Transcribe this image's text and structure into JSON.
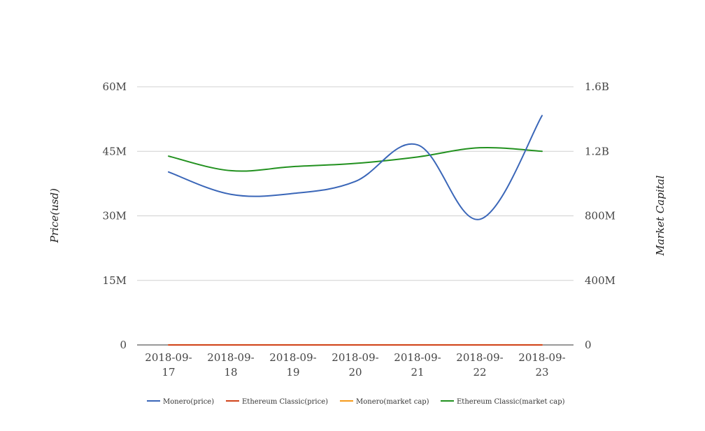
{
  "chart_data": {
    "type": "line",
    "title": "",
    "categories": [
      "2018-09-17",
      "2018-09-18",
      "2018-09-19",
      "2018-09-20",
      "2018-09-21",
      "2018-09-22",
      "2018-09-23"
    ],
    "category_labels": [
      [
        "2018-09-",
        "17"
      ],
      [
        "2018-09-",
        "18"
      ],
      [
        "2018-09-",
        "19"
      ],
      [
        "2018-09-",
        "20"
      ],
      [
        "2018-09-",
        "21"
      ],
      [
        "2018-09-",
        "22"
      ],
      [
        "2018-09-",
        "23"
      ]
    ],
    "y_left": {
      "label": "Price(usd)",
      "ylim": [
        0,
        60000000
      ],
      "ticks": [
        0,
        15000000,
        30000000,
        45000000,
        60000000
      ],
      "tick_labels": [
        "0",
        "15M",
        "30M",
        "45M",
        "60M"
      ]
    },
    "y_right": {
      "label": "Market Capital",
      "ylim": [
        0,
        1600000000
      ],
      "ticks": [
        0,
        400000000,
        800000000,
        1200000000,
        1600000000
      ],
      "tick_labels": [
        "0",
        "400M",
        "800M",
        "1.2B",
        "1.6B"
      ]
    },
    "grid": true,
    "legend_position": "bottom",
    "series": [
      {
        "name": "Monero(price)",
        "axis": "left",
        "color": "#3a66b8",
        "values": [
          40200000,
          35000000,
          35200000,
          38000000,
          46500000,
          29200000,
          53300000
        ]
      },
      {
        "name": "Ethereum Classic(price)",
        "axis": "left",
        "color": "#d0431b",
        "values": [
          10,
          11,
          11,
          11,
          12,
          11,
          11
        ]
      },
      {
        "name": "Monero(market cap)",
        "axis": "right",
        "color": "#f59a1c",
        "values": [
          650000,
          700000,
          650000,
          700000,
          750000,
          700000,
          650000
        ]
      },
      {
        "name": "Ethereum Classic(market cap)",
        "axis": "right",
        "color": "#22911f",
        "values": [
          1170000000,
          1080000000,
          1105000000,
          1125000000,
          1165000000,
          1222000000,
          1200000000
        ]
      }
    ]
  }
}
